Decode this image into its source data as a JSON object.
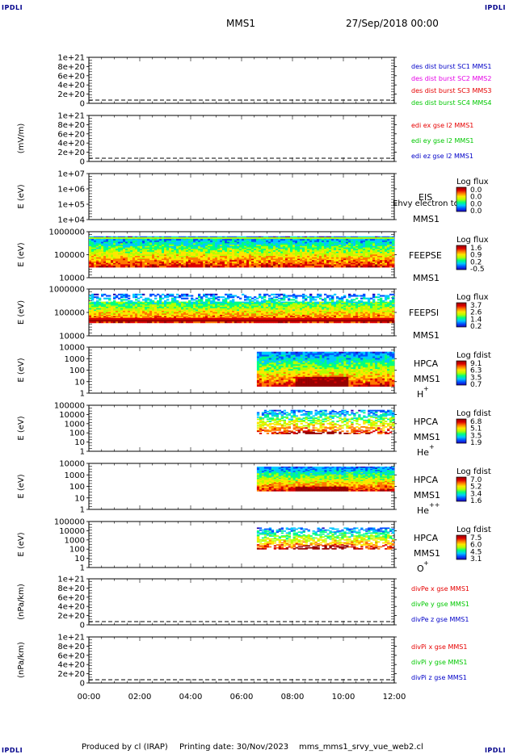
{
  "corner_tl": "IPDLI",
  "corner_tr": "IPDLI",
  "corner_bl": "IPDLI",
  "corner_br": "IPDLI",
  "header": {
    "spacecraft": "MMS1",
    "date": "27/Sep/2018 00:00"
  },
  "footer": {
    "produced": "Produced by cl (IRAP)",
    "printing": "Printing date: 30/Nov/2023",
    "file": "mms_mms1_srvy_vue_web2.cl"
  },
  "colors": {
    "rainbow": [
      "#1e00b4",
      "#0050ff",
      "#00c8ff",
      "#00ff80",
      "#b4ff00",
      "#ffe600",
      "#ff7800",
      "#dc0000",
      "#960000"
    ]
  },
  "chart_data": {
    "type": "heatmap",
    "x_ticks": [
      "00:00",
      "02:00",
      "04:00",
      "06:00",
      "08:00",
      "10:00",
      "12:00"
    ],
    "x_range_hours": [
      0,
      12
    ],
    "panels": [
      {
        "id": "des",
        "type": "line",
        "ylabel": "",
        "yticks": [
          "1e+21",
          "8e+20",
          "6e+20",
          "4e+20",
          "2e+20",
          "0"
        ],
        "legend": [
          {
            "text": "des dist burst SC1 MMS1",
            "color": "#0000c8"
          },
          {
            "text": "des dist burst SC2 MMS2",
            "color": "#e600e6"
          },
          {
            "text": "des dist burst SC3 MMS3",
            "color": "#e60000"
          },
          {
            "text": "des dist burst SC4 MMS4",
            "color": "#00c800"
          }
        ]
      },
      {
        "id": "edi",
        "type": "line",
        "ylabel": "(mV/m)",
        "yticks": [
          "1e+21",
          "8e+20",
          "6e+20",
          "4e+20",
          "2e+20",
          "0"
        ],
        "legend": [
          {
            "text": "edi ex gse l2 MMS1",
            "color": "#e60000"
          },
          {
            "text": "edi ey gse l2 MMS1",
            "color": "#00c800"
          },
          {
            "text": "edi ez gse l2 MMS1",
            "color": "#0000c8"
          }
        ]
      },
      {
        "id": "eis",
        "type": "heatmap",
        "ylabel": "E (eV)",
        "yticks": [
          "1e+07",
          "1e+06",
          "1e+05",
          "1e+04"
        ],
        "instrument": "EIS",
        "instrument_overlay": "Ehvy electron tof",
        "sc": "MMS1",
        "cbar_title": "Log flux",
        "cbar_ticks": [
          "0.0",
          "0.0",
          "0.0",
          "0.0"
        ],
        "start_hour": null
      },
      {
        "id": "feepse",
        "type": "heatmap",
        "ylabel": "E (eV)",
        "yticks": [
          "1000000",
          "100000",
          "10000"
        ],
        "instrument": "FEEPSE",
        "sc": "MMS1",
        "cbar_title": "Log flux",
        "cbar_ticks": [
          "1.6",
          "0.9",
          "0.2",
          "-0.5"
        ],
        "start_hour": 0
      },
      {
        "id": "feepsi",
        "type": "heatmap",
        "ylabel": "E (eV)",
        "yticks": [
          "1000000",
          "100000",
          "10000"
        ],
        "instrument": "FEEPSI",
        "sc": "MMS1",
        "cbar_title": "Log flux",
        "cbar_ticks": [
          "3.7",
          "2.6",
          "1.4",
          "0.2"
        ],
        "start_hour": 0
      },
      {
        "id": "hpca_h",
        "type": "heatmap",
        "ylabel": "E (eV)",
        "yticks": [
          "10000",
          "1000",
          "100",
          "10",
          "1"
        ],
        "instrument": "HPCA",
        "sc": "MMS1",
        "species": "H",
        "charge": "+",
        "cbar_title": "Log fdist",
        "cbar_ticks": [
          "9.1",
          "6.3",
          "3.5",
          "0.7"
        ],
        "start_hour": 6.6
      },
      {
        "id": "hpca_he1",
        "type": "heatmap",
        "ylabel": "E (eV)",
        "yticks": [
          "100000",
          "10000",
          "1000",
          "100",
          "10",
          "1"
        ],
        "instrument": "HPCA",
        "sc": "MMS1",
        "species": "He",
        "charge": "+",
        "cbar_title": "Log fdist",
        "cbar_ticks": [
          "6.8",
          "5.1",
          "3.5",
          "1.9"
        ],
        "start_hour": 6.6
      },
      {
        "id": "hpca_he2",
        "type": "heatmap",
        "ylabel": "E (eV)",
        "yticks": [
          "10000",
          "1000",
          "100",
          "10",
          "1"
        ],
        "instrument": "HPCA",
        "sc": "MMS1",
        "species": "He",
        "charge": "++",
        "cbar_title": "Log fdist",
        "cbar_ticks": [
          "7.0",
          "5.2",
          "3.4",
          "1.6"
        ],
        "start_hour": 6.6
      },
      {
        "id": "hpca_o",
        "type": "heatmap",
        "ylabel": "E (eV)",
        "yticks": [
          "100000",
          "10000",
          "1000",
          "100",
          "10",
          "1"
        ],
        "instrument": "HPCA",
        "sc": "MMS1",
        "species": "O",
        "charge": "+",
        "cbar_title": "Log fdist",
        "cbar_ticks": [
          "7.5",
          "6.0",
          "4.5",
          "3.1"
        ],
        "start_hour": 6.6
      },
      {
        "id": "divpe",
        "type": "line",
        "ylabel": "(nPa/km)",
        "yticks": [
          "1e+21",
          "8e+20",
          "6e+20",
          "4e+20",
          "2e+20",
          "0"
        ],
        "legend": [
          {
            "text": "divPe x gse MMS1",
            "color": "#e60000"
          },
          {
            "text": "divPe y gse MMS1",
            "color": "#00c800"
          },
          {
            "text": "divPe z gse MMS1",
            "color": "#0000c8"
          }
        ]
      },
      {
        "id": "divpi",
        "type": "line",
        "ylabel": "(nPa/km)",
        "yticks": [
          "1e+21",
          "8e+20",
          "6e+20",
          "4e+20",
          "2e+20",
          "0"
        ],
        "legend": [
          {
            "text": "divPi x gse MMS1",
            "color": "#e60000"
          },
          {
            "text": "divPi y gse MMS1",
            "color": "#00c800"
          },
          {
            "text": "divPi z gse MMS1",
            "color": "#0000c8"
          }
        ]
      }
    ]
  }
}
